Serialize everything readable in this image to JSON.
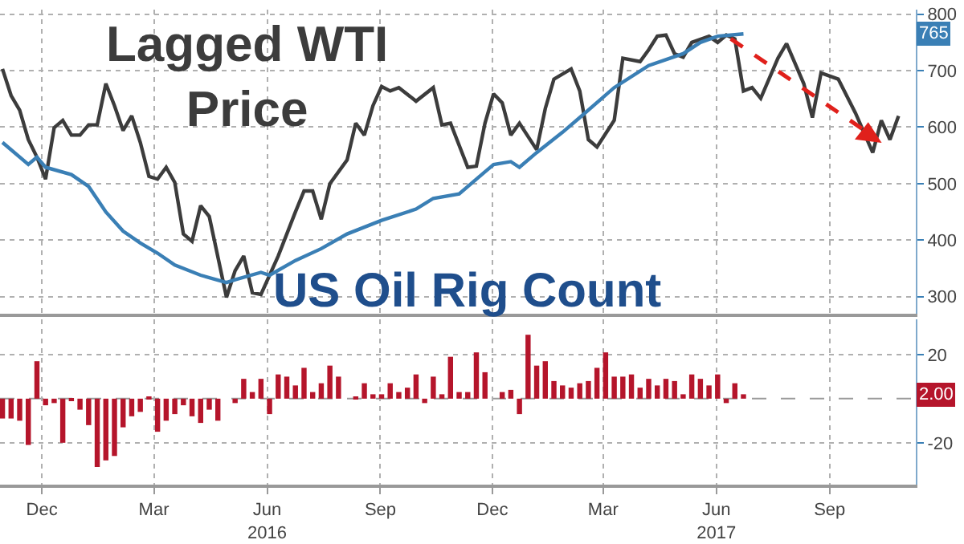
{
  "chart_data": [
    {
      "type": "line",
      "xlim": [
        "2015-10-28",
        "2017-11-10"
      ],
      "ylim": [
        270,
        808
      ],
      "yticks": [
        300,
        400,
        500,
        600,
        700,
        800
      ],
      "xticks": [
        {
          "value": "2015-12-01",
          "label": null
        },
        {
          "value": "2016-03-01",
          "label": null
        },
        {
          "value": "2016-06-01",
          "label": null
        },
        {
          "value": "2016-09-01",
          "label": null
        },
        {
          "value": "2016-12-01",
          "label": null
        },
        {
          "value": "2017-03-01",
          "label": null
        },
        {
          "value": "2017-06-01",
          "label": null
        },
        {
          "value": "2017-09-01",
          "label": null
        }
      ],
      "tick_labels": "y",
      "grid": true,
      "marker": "none",
      "series": [
        {
          "name": "Lagged WTI\nPrice",
          "color": "#3c3c3c",
          "line_style": "solid",
          "x": [
            "2015-10-30",
            "2015-11-06",
            "2015-11-13",
            "2015-11-20",
            "2015-11-27",
            "2015-12-04",
            "2015-12-11",
            "2015-12-18",
            "2015-12-25",
            "2016-01-01",
            "2016-01-08",
            "2016-01-15",
            "2016-01-22",
            "2016-01-29",
            "2016-02-05",
            "2016-02-12",
            "2016-02-19",
            "2016-02-26",
            "2016-03-04",
            "2016-03-11",
            "2016-03-18",
            "2016-03-25",
            "2016-04-01",
            "2016-04-08",
            "2016-04-15",
            "2016-04-29",
            "2016-05-06",
            "2016-05-13",
            "2016-05-20",
            "2016-05-27",
            "2016-06-10",
            "2016-06-24",
            "2016-07-01",
            "2016-07-08",
            "2016-07-15",
            "2016-07-22",
            "2016-08-05",
            "2016-08-12",
            "2016-08-19",
            "2016-08-26",
            "2016-09-02",
            "2016-09-09",
            "2016-09-16",
            "2016-09-30",
            "2016-10-14",
            "2016-10-21",
            "2016-10-28",
            "2016-11-11",
            "2016-11-18",
            "2016-11-25",
            "2016-12-02",
            "2016-12-09",
            "2016-12-16",
            "2016-12-23",
            "2017-01-06",
            "2017-01-13",
            "2017-01-20",
            "2017-02-03",
            "2017-02-10",
            "2017-02-17",
            "2017-02-24",
            "2017-03-10",
            "2017-03-17",
            "2017-03-31",
            "2017-04-07",
            "2017-04-14",
            "2017-04-21",
            "2017-04-28",
            "2017-05-05",
            "2017-05-12",
            "2017-05-26",
            "2017-06-02",
            "2017-06-09",
            "2017-06-16",
            "2017-06-23",
            "2017-06-30",
            "2017-07-07",
            "2017-07-21",
            "2017-07-28",
            "2017-08-11",
            "2017-08-18",
            "2017-08-25",
            "2017-09-08",
            "2017-09-22",
            "2017-10-06",
            "2017-10-13",
            "2017-10-20",
            "2017-10-27"
          ],
          "values": [
            703,
            656,
            630,
            578,
            547,
            508,
            599,
            612,
            586,
            586,
            604,
            604,
            677,
            638,
            594,
            620,
            573,
            513,
            508,
            529,
            502,
            411,
            398,
            461,
            442,
            299,
            346,
            372,
            307,
            304,
            372,
            450,
            487,
            487,
            437,
            500,
            542,
            607,
            586,
            638,
            672,
            664,
            670,
            646,
            670,
            604,
            607,
            529,
            531,
            607,
            659,
            643,
            586,
            607,
            560,
            633,
            685,
            703,
            664,
            578,
            565,
            612,
            722,
            716,
            737,
            761,
            763,
            730,
            724,
            750,
            761,
            750,
            763,
            756,
            664,
            670,
            651,
            722,
            748,
            677,
            617,
            696,
            685,
            625,
            555,
            612,
            578,
            620
          ]
        },
        {
          "name": "US Oil Rig Count",
          "color": "#3a7fb5",
          "line_style": "solid",
          "x": [
            "2015-10-30",
            "2015-11-20",
            "2015-11-27",
            "2015-12-04",
            "2015-12-25",
            "2016-01-08",
            "2016-01-22",
            "2016-02-05",
            "2016-02-19",
            "2016-03-04",
            "2016-03-18",
            "2016-04-08",
            "2016-04-29",
            "2016-05-06",
            "2016-05-27",
            "2016-06-03",
            "2016-06-24",
            "2016-07-15",
            "2016-08-05",
            "2016-09-02",
            "2016-09-30",
            "2016-10-14",
            "2016-11-04",
            "2016-11-25",
            "2016-12-02",
            "2016-12-16",
            "2016-12-23",
            "2017-01-06",
            "2017-01-27",
            "2017-02-10",
            "2017-03-10",
            "2017-04-07",
            "2017-05-05",
            "2017-05-19",
            "2017-06-02",
            "2017-06-23"
          ],
          "values": [
            573,
            534,
            547,
            529,
            516,
            495,
            450,
            416,
            395,
            377,
            356,
            338,
            325,
            330,
            343,
            338,
            364,
            385,
            411,
            435,
            455,
            474,
            482,
            521,
            534,
            539,
            529,
            555,
            591,
            617,
            670,
            709,
            730,
            750,
            761,
            765
          ]
        }
      ],
      "annotations": [
        {
          "text": "765",
          "y": 765
        }
      ]
    },
    {
      "type": "bar",
      "color": "#b5152b",
      "xlim": [
        "2015-10-28",
        "2017-11-10"
      ],
      "ylim": [
        -39,
        36
      ],
      "yticks": [
        -20,
        20
      ],
      "xticks": [
        {
          "value": "2015-12-01",
          "label": "Dec"
        },
        {
          "value": "2016-03-01",
          "label": "Mar"
        },
        {
          "value": "2016-06-01",
          "label": "Jun\n2016"
        },
        {
          "value": "2016-09-01",
          "label": "Sep"
        },
        {
          "value": "2016-12-01",
          "label": "Dec"
        },
        {
          "value": "2017-03-01",
          "label": "Mar"
        },
        {
          "value": "2017-06-01",
          "label": "Jun\n2017"
        },
        {
          "value": "2017-09-01",
          "label": "Sep"
        }
      ],
      "grid": true,
      "x": [
        "2015-10-30",
        "2015-11-06",
        "2015-11-13",
        "2015-11-20",
        "2015-11-27",
        "2015-12-04",
        "2015-12-11",
        "2015-12-18",
        "2015-12-25",
        "2016-01-01",
        "2016-01-08",
        "2016-01-15",
        "2016-01-22",
        "2016-01-29",
        "2016-02-05",
        "2016-02-12",
        "2016-02-19",
        "2016-02-26",
        "2016-03-04",
        "2016-03-11",
        "2016-03-18",
        "2016-03-25",
        "2016-04-01",
        "2016-04-08",
        "2016-04-15",
        "2016-04-22",
        "2016-04-29",
        "2016-05-06",
        "2016-05-13",
        "2016-05-20",
        "2016-05-27",
        "2016-06-03",
        "2016-06-10",
        "2016-06-17",
        "2016-06-24",
        "2016-07-01",
        "2016-07-08",
        "2016-07-15",
        "2016-07-22",
        "2016-07-29",
        "2016-08-05",
        "2016-08-12",
        "2016-08-19",
        "2016-08-26",
        "2016-09-02",
        "2016-09-09",
        "2016-09-16",
        "2016-09-23",
        "2016-09-30",
        "2016-10-07",
        "2016-10-14",
        "2016-10-21",
        "2016-10-28",
        "2016-11-04",
        "2016-11-11",
        "2016-11-18",
        "2016-11-25",
        "2016-12-02",
        "2016-12-09",
        "2016-12-16",
        "2016-12-23",
        "2016-12-30",
        "2017-01-06",
        "2017-01-13",
        "2017-01-20",
        "2017-01-27",
        "2017-02-03",
        "2017-02-10",
        "2017-02-17",
        "2017-02-24",
        "2017-03-03",
        "2017-03-10",
        "2017-03-17",
        "2017-03-24",
        "2017-03-31",
        "2017-04-07",
        "2017-04-14",
        "2017-04-21",
        "2017-04-28",
        "2017-05-05",
        "2017-05-12",
        "2017-05-19",
        "2017-05-26",
        "2017-06-02",
        "2017-06-09",
        "2017-06-16",
        "2017-06-23"
      ],
      "values": [
        -9,
        -9,
        -10,
        -21,
        17,
        -3,
        -2,
        -20,
        -1,
        -5,
        -12,
        -31,
        -28,
        -26,
        -13,
        -8,
        -6,
        1,
        -15,
        -10,
        -7,
        -3,
        -8,
        -11,
        -5,
        -10,
        0,
        -2,
        9,
        3,
        9,
        -7,
        11,
        10,
        6,
        14,
        3,
        7,
        15,
        10,
        0,
        1,
        7,
        2,
        2,
        7,
        3,
        5,
        11,
        -2,
        10,
        2,
        19,
        3,
        3,
        21,
        12,
        0,
        3,
        4,
        -7,
        29,
        15,
        17,
        8,
        6,
        5,
        7,
        8,
        14,
        21,
        10,
        10,
        11,
        5,
        9,
        6,
        9,
        8,
        2,
        11,
        9,
        6,
        11,
        -2,
        7,
        2
      ],
      "ref_lines": [
        {
          "axis": "y",
          "value": 0,
          "line_style": "dashed",
          "color": "#9a9a9a"
        }
      ],
      "annotations": [
        {
          "text": "2.00",
          "y": 2
        }
      ]
    }
  ]
}
